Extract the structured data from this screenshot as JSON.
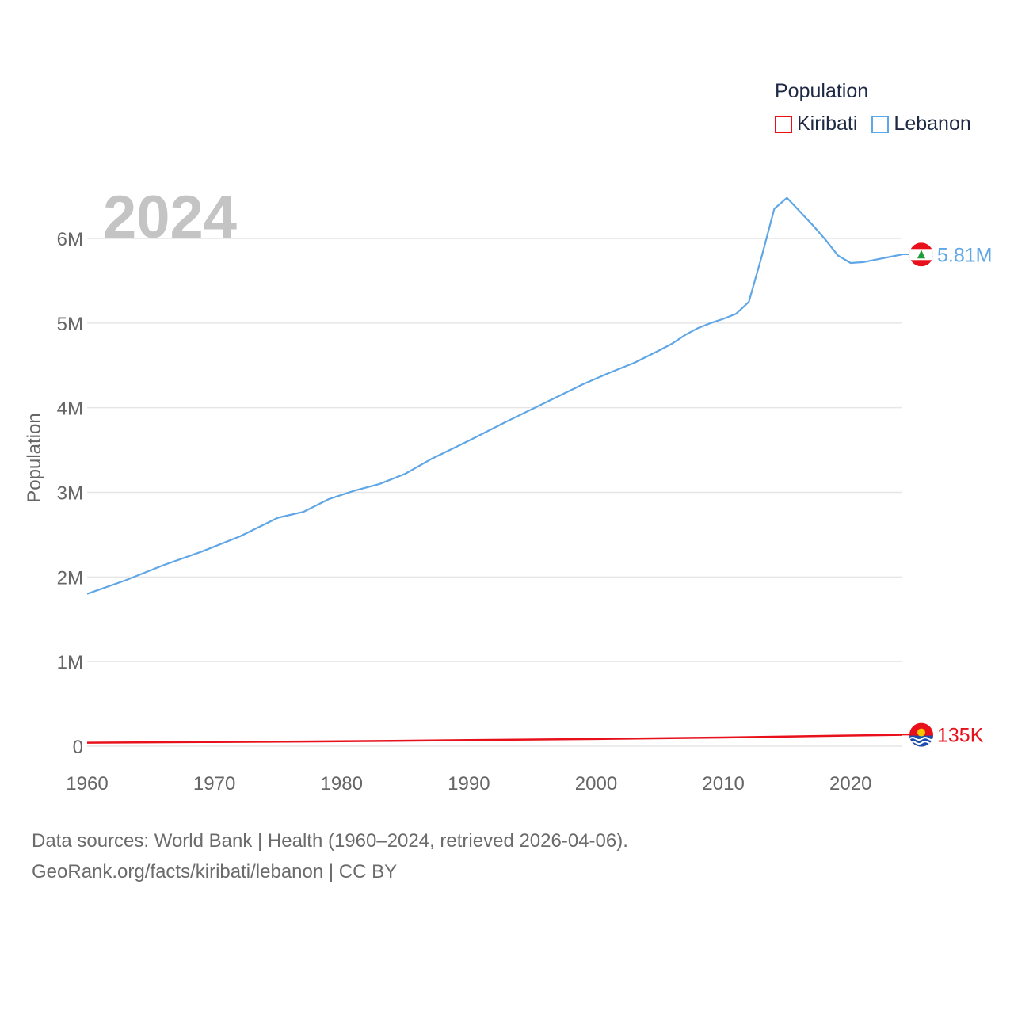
{
  "colors": {
    "kiribati": "#e8111b",
    "lebanon": "#5fa6e6",
    "grid": "#e6e6e6",
    "axis_text": "#666666",
    "year_watermark": "#c4c4c4"
  },
  "legend": {
    "title": "Population",
    "items": [
      {
        "label": "Kiribati",
        "color": "#e8111b"
      },
      {
        "label": "Lebanon",
        "color": "#5fa6e6"
      }
    ]
  },
  "footer": {
    "line1": "Data sources: World Bank | Health (1960–2024, retrieved 2026-04-06).",
    "line2": "GeoRank.org/facts/kiribati/lebanon | CC BY"
  },
  "chart_data": {
    "type": "line",
    "title": "",
    "current_year_label": "2024",
    "xlabel": "",
    "ylabel": "Population",
    "xlim": [
      1960,
      2024
    ],
    "ylim": [
      0,
      6500000
    ],
    "x_ticks": [
      1960,
      1970,
      1980,
      1990,
      2000,
      2010,
      2020
    ],
    "y_ticks": [
      0,
      1000000,
      2000000,
      3000000,
      4000000,
      5000000,
      6000000
    ],
    "y_tick_labels": [
      "0",
      "1M",
      "2M",
      "3M",
      "4M",
      "5M",
      "6M"
    ],
    "series": [
      {
        "name": "Lebanon",
        "end_label": "5.81M",
        "points": [
          [
            1960,
            1800000
          ],
          [
            1963,
            1960000
          ],
          [
            1966,
            2140000
          ],
          [
            1969,
            2300000
          ],
          [
            1972,
            2480000
          ],
          [
            1975,
            2700000
          ],
          [
            1977,
            2770000
          ],
          [
            1979,
            2920000
          ],
          [
            1981,
            3020000
          ],
          [
            1983,
            3100000
          ],
          [
            1985,
            3220000
          ],
          [
            1987,
            3390000
          ],
          [
            1990,
            3610000
          ],
          [
            1993,
            3840000
          ],
          [
            1996,
            4060000
          ],
          [
            1999,
            4280000
          ],
          [
            2001,
            4410000
          ],
          [
            2003,
            4530000
          ],
          [
            2005,
            4680000
          ],
          [
            2006,
            4760000
          ],
          [
            2007,
            4860000
          ],
          [
            2008,
            4940000
          ],
          [
            2009,
            5000000
          ],
          [
            2010,
            5050000
          ],
          [
            2011,
            5110000
          ],
          [
            2012,
            5250000
          ],
          [
            2013,
            5780000
          ],
          [
            2014,
            6350000
          ],
          [
            2015,
            6480000
          ],
          [
            2016,
            6320000
          ],
          [
            2017,
            6160000
          ],
          [
            2018,
            5990000
          ],
          [
            2019,
            5800000
          ],
          [
            2020,
            5710000
          ],
          [
            2021,
            5720000
          ],
          [
            2022,
            5750000
          ],
          [
            2023,
            5780000
          ],
          [
            2024,
            5810000
          ]
        ]
      },
      {
        "name": "Kiribati",
        "end_label": "135K",
        "points": [
          [
            1960,
            41000
          ],
          [
            1970,
            50000
          ],
          [
            1980,
            58000
          ],
          [
            1990,
            72000
          ],
          [
            2000,
            85000
          ],
          [
            2010,
            103000
          ],
          [
            2020,
            126000
          ],
          [
            2024,
            135000
          ]
        ]
      }
    ]
  }
}
